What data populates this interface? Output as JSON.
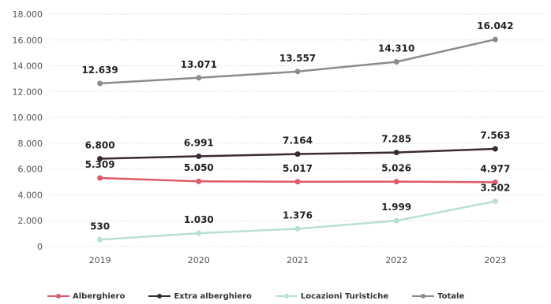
{
  "chart_data": {
    "type": "line",
    "x": [
      "2019",
      "2020",
      "2021",
      "2022",
      "2023"
    ],
    "ylim": [
      0,
      18000
    ],
    "yticks": [
      "0",
      "2.000",
      "4.000",
      "6.000",
      "8.000",
      "10.000",
      "12.000",
      "14.000",
      "16.000",
      "18.000"
    ],
    "grid": true,
    "legend_position": "bottom",
    "series": [
      {
        "name": "Alberghiero",
        "color": "#e05a6a",
        "values": [
          5309,
          5050,
          5017,
          5026,
          4977
        ],
        "labels": [
          "5.309",
          "5.050",
          "5.017",
          "5.026",
          "4.977"
        ]
      },
      {
        "name": "Extra alberghiero",
        "color": "#3a2a36",
        "values": [
          6800,
          6991,
          7164,
          7285,
          7563
        ],
        "labels": [
          "6.800",
          "6.991",
          "7.164",
          "7.285",
          "7.563"
        ]
      },
      {
        "name": "Locazioni Turistiche",
        "color": "#b9dfd6",
        "values": [
          530,
          1030,
          1376,
          1999,
          3502
        ],
        "labels": [
          "530",
          "1.030",
          "1.376",
          "1.999",
          "3.502"
        ]
      },
      {
        "name": "Totale",
        "color": "#8c8c8c",
        "values": [
          12639,
          13071,
          13557,
          14310,
          16042
        ],
        "labels": [
          "12.639",
          "13.071",
          "13.557",
          "14.310",
          "16.042"
        ]
      }
    ]
  }
}
